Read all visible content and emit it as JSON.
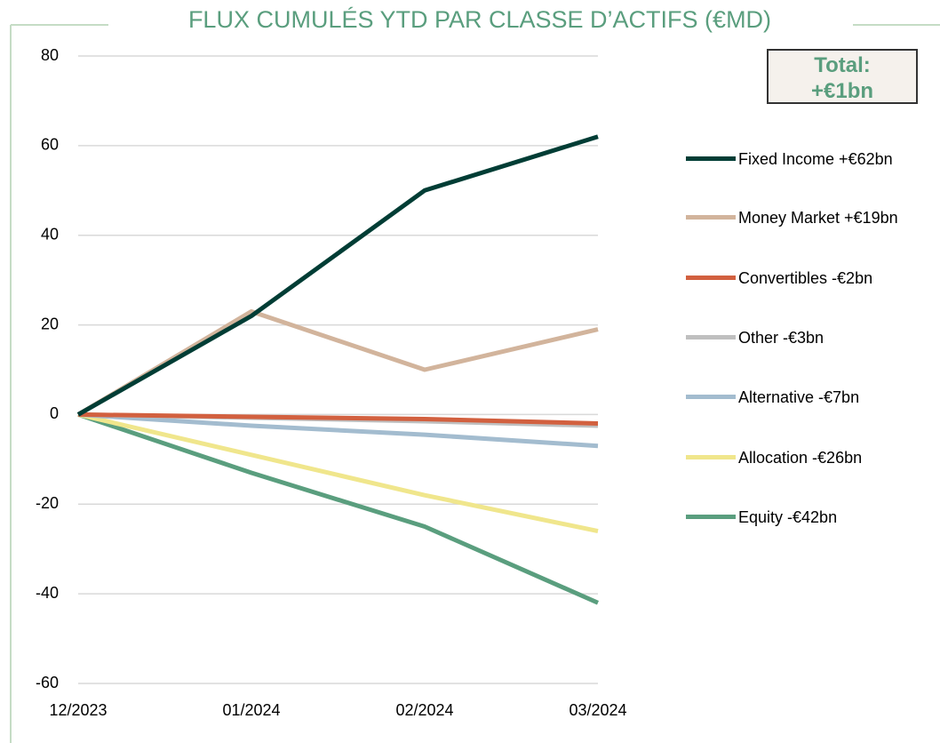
{
  "chart_data": {
    "type": "line",
    "title": "FLUX CUMULÉS YTD PAR CLASSE D’ACTIFS (€MD)",
    "annotation": [
      "Total:",
      "+€1bn"
    ],
    "categories": [
      "12/2023",
      "01/2024",
      "02/2024",
      "03/2024"
    ],
    "series": [
      {
        "name": "Fixed Income +€62bn",
        "color": "#003d35",
        "values": [
          0,
          22,
          50,
          62
        ]
      },
      {
        "name": "Money Market +€19bn",
        "color": "#d2b49c",
        "values": [
          0,
          23,
          10,
          19
        ]
      },
      {
        "name": "Convertibles -€2bn",
        "color": "#d2603f",
        "values": [
          0,
          -0.5,
          -1,
          -2
        ]
      },
      {
        "name": "Other -€3bn",
        "color": "#bfbfbf",
        "values": [
          0,
          -0.7,
          -1.5,
          -2.5
        ]
      },
      {
        "name": "Alternative -€7bn",
        "color": "#a3bccf",
        "values": [
          0,
          -2.5,
          -4.5,
          -7
        ]
      },
      {
        "name": "Allocation -€26bn",
        "color": "#f0e68c",
        "values": [
          0,
          -9,
          -18,
          -26
        ]
      },
      {
        "name": "Equity -€42bn",
        "color": "#5a9e7e",
        "values": [
          0,
          -13,
          -25,
          -42
        ]
      }
    ],
    "ylim": [
      -60,
      80
    ],
    "yticks": [
      -60,
      -40,
      -20,
      0,
      20,
      40,
      60,
      80
    ],
    "grid": true
  }
}
